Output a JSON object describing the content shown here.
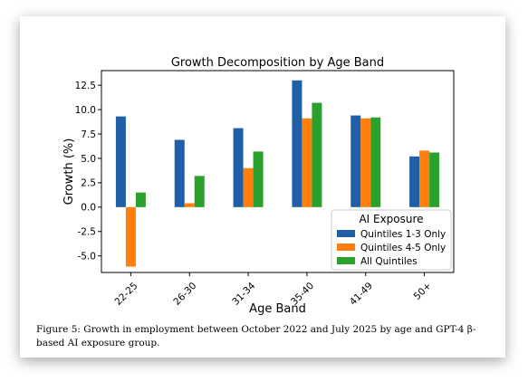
{
  "chart_data": {
    "type": "bar",
    "title": "Growth Decomposition by Age Band",
    "xlabel": "Age Band",
    "ylabel": "Growth (%)",
    "categories": [
      "22-25",
      "26-30",
      "31-34",
      "35-40",
      "41-49",
      "50+"
    ],
    "ylim": [
      -6.7,
      14.0
    ],
    "yticks": [
      "-5.0",
      "-2.5",
      "0.0",
      "2.5",
      "5.0",
      "7.5",
      "10.0",
      "12.5"
    ],
    "grid": false,
    "legend": {
      "title": "AI Exposure",
      "placement": "lower-right"
    },
    "series": [
      {
        "name": "Quintiles 1-3 Only",
        "color": "#1f5fa8",
        "values": [
          9.3,
          6.9,
          8.1,
          13.0,
          9.4,
          5.2
        ]
      },
      {
        "name": "Quintiles 4-5 Only",
        "color": "#ff7f0e",
        "values": [
          -6.1,
          0.4,
          4.0,
          9.1,
          9.1,
          5.8
        ]
      },
      {
        "name": "All Quintiles",
        "color": "#2ca02c",
        "values": [
          1.5,
          3.2,
          5.7,
          10.7,
          9.2,
          5.6
        ]
      }
    ]
  },
  "caption": "Figure 5: Growth in employment between October 2022 and July 2025 by age and GPT-4 β-based AI exposure group."
}
